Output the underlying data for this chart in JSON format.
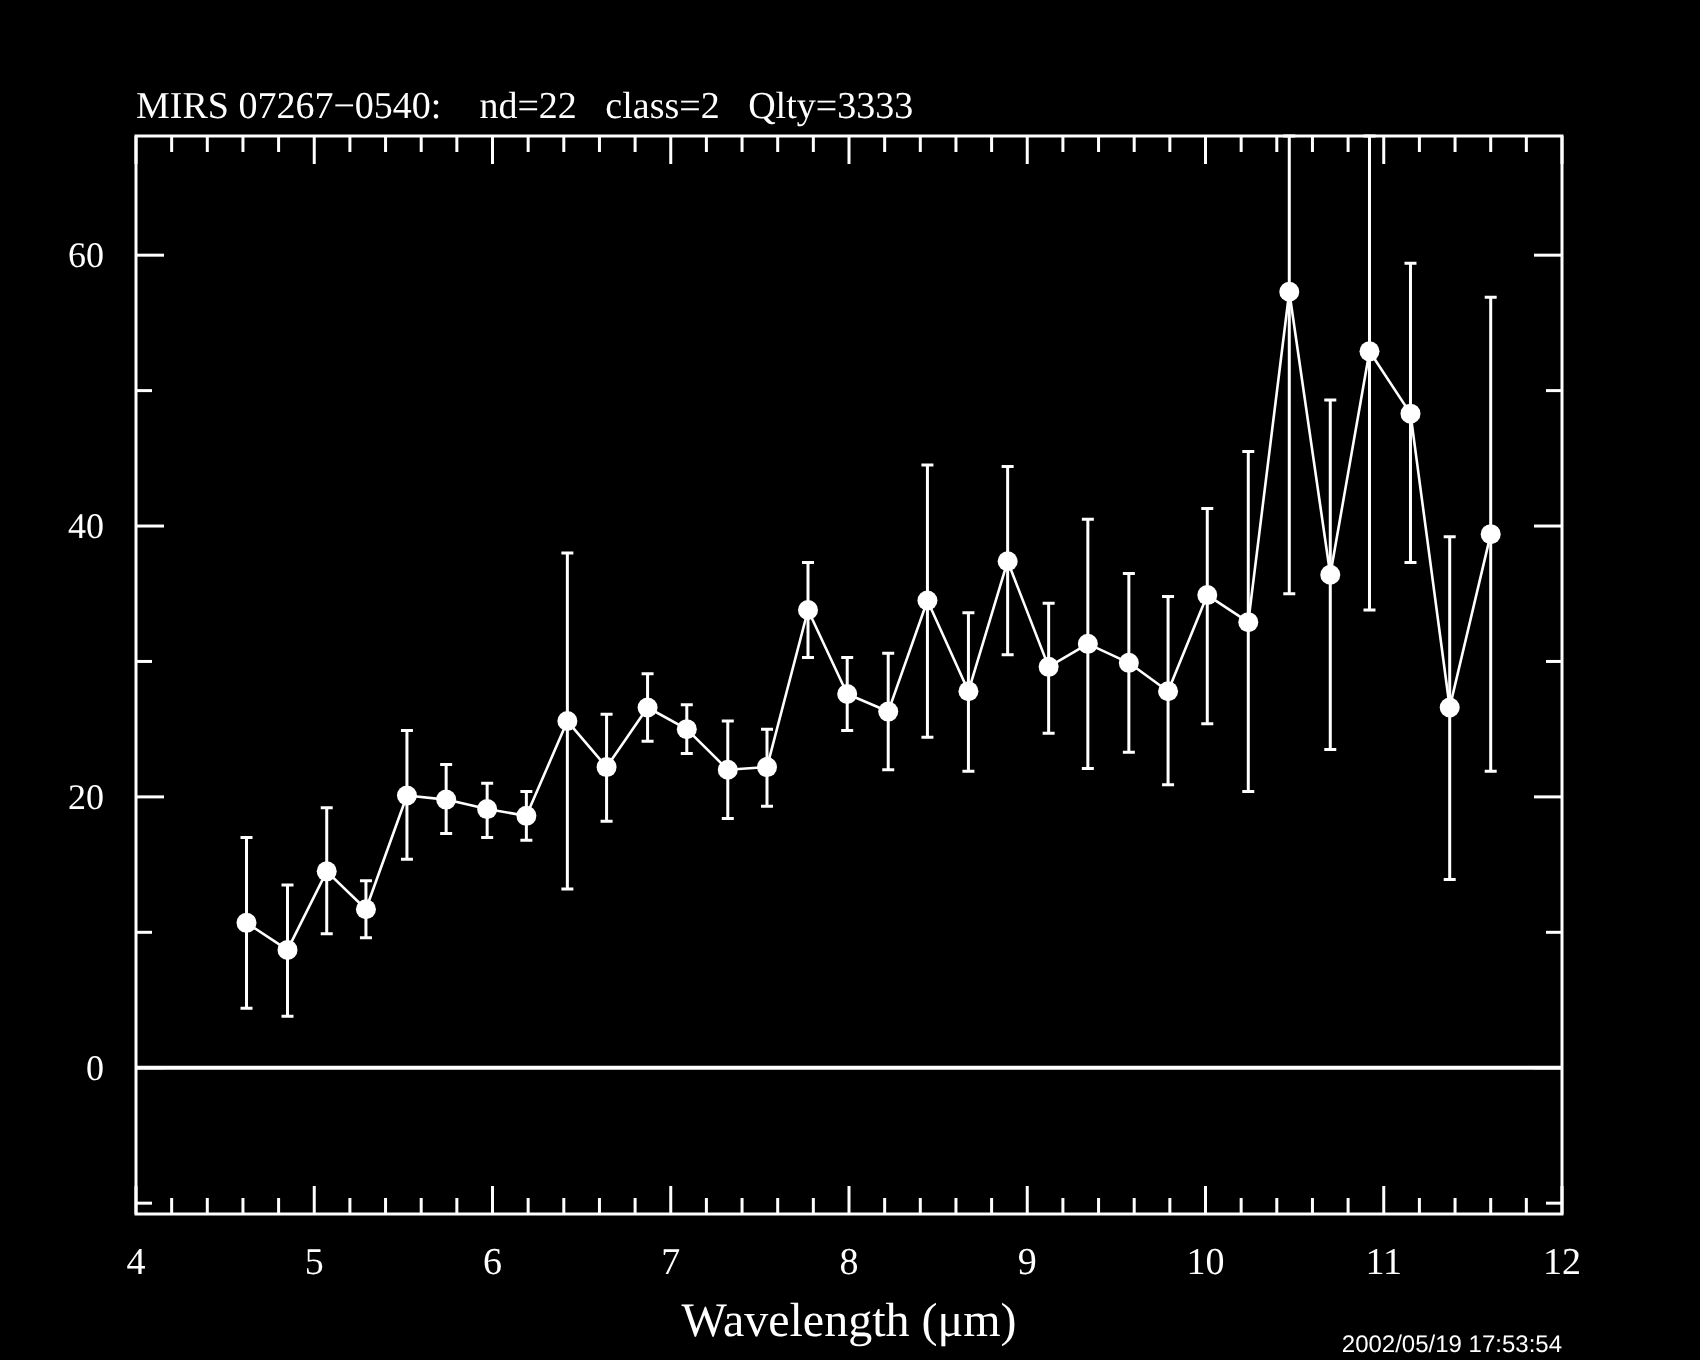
{
  "chart_data": {
    "type": "line",
    "title": "MIRS 07267−0540:    nd=22   class=2   Qlty=3333",
    "xlabel": "Wavelength (μm)",
    "annotations": [
      "2002/05/19 17:53:54"
    ],
    "x": [
      4.62,
      4.85,
      5.07,
      5.29,
      5.52,
      5.74,
      5.97,
      6.19,
      6.42,
      6.64,
      6.87,
      7.09,
      7.32,
      7.54,
      7.77,
      7.99,
      8.22,
      8.44,
      8.67,
      8.89,
      9.12,
      9.34,
      9.57,
      9.79,
      10.01,
      10.24,
      10.47,
      10.7,
      10.92,
      11.15,
      11.37,
      11.6
    ],
    "series": [
      {
        "color": "#ffffff",
        "values": [
          10.7,
          8.7,
          14.5,
          11.7,
          20.1,
          19.8,
          19.1,
          18.6,
          25.6,
          22.2,
          26.6,
          25.0,
          22.0,
          22.2,
          33.8,
          27.6,
          26.3,
          34.5,
          27.8,
          37.4,
          29.6,
          31.3,
          29.9,
          27.8,
          34.9,
          32.9,
          57.3,
          36.4,
          52.9,
          48.3,
          26.6,
          39.4
        ],
        "errors": [
          [
            4.4,
            17.0
          ],
          [
            3.8,
            13.5
          ],
          [
            9.9,
            19.2
          ],
          [
            9.6,
            13.8
          ],
          [
            15.4,
            24.9
          ],
          [
            17.3,
            22.4
          ],
          [
            17.0,
            21.0
          ],
          [
            16.8,
            20.4
          ],
          [
            13.2,
            38.0
          ],
          [
            18.2,
            26.1
          ],
          [
            24.1,
            29.1
          ],
          [
            23.2,
            26.8
          ],
          [
            18.4,
            25.6
          ],
          [
            19.3,
            25.0
          ],
          [
            30.3,
            37.3
          ],
          [
            24.9,
            30.3
          ],
          [
            22.0,
            30.6
          ],
          [
            24.4,
            44.5
          ],
          [
            21.9,
            33.6
          ],
          [
            30.5,
            44.4
          ],
          [
            24.7,
            34.3
          ],
          [
            22.1,
            40.5
          ],
          [
            23.3,
            36.5
          ],
          [
            20.9,
            34.8
          ],
          [
            25.4,
            41.3
          ],
          [
            20.4,
            45.5
          ],
          [
            35.0,
            68.8
          ],
          [
            23.5,
            49.3
          ],
          [
            33.8,
            68.8
          ],
          [
            37.3,
            59.4
          ],
          [
            13.9,
            39.2
          ],
          [
            21.9,
            56.9
          ]
        ]
      }
    ],
    "xlim": [
      4,
      12
    ],
    "xticks": [
      4,
      {
        "value": 4.2,
        "label": null
      },
      {
        "value": 4.4,
        "label": null
      },
      {
        "value": 4.6,
        "label": null
      },
      {
        "value": 4.8,
        "label": null
      },
      5,
      {
        "value": 5.2,
        "label": null
      },
      {
        "value": 5.4,
        "label": null
      },
      {
        "value": 5.6,
        "label": null
      },
      {
        "value": 5.8,
        "label": null
      },
      6,
      {
        "value": 6.2,
        "label": null
      },
      {
        "value": 6.4,
        "label": null
      },
      {
        "value": 6.6,
        "label": null
      },
      {
        "value": 6.8,
        "label": null
      },
      7,
      {
        "value": 7.2,
        "label": null
      },
      {
        "value": 7.4,
        "label": null
      },
      {
        "value": 7.6,
        "label": null
      },
      {
        "value": 7.8,
        "label": null
      },
      8,
      {
        "value": 8.2,
        "label": null
      },
      {
        "value": 8.4,
        "label": null
      },
      {
        "value": 8.6,
        "label": null
      },
      {
        "value": 8.8,
        "label": null
      },
      9,
      {
        "value": 9.2,
        "label": null
      },
      {
        "value": 9.4,
        "label": null
      },
      {
        "value": 9.6,
        "label": null
      },
      {
        "value": 9.8,
        "label": null
      },
      10,
      {
        "value": 10.2,
        "label": null
      },
      {
        "value": 10.4,
        "label": null
      },
      {
        "value": 10.6,
        "label": null
      },
      {
        "value": 10.8,
        "label": null
      },
      11,
      {
        "value": 11.2,
        "label": null
      },
      {
        "value": 11.4,
        "label": null
      },
      {
        "value": 11.6,
        "label": null
      },
      {
        "value": 11.8,
        "label": null
      },
      12
    ],
    "ylim": [
      -10.8,
      68.8
    ],
    "yticks": [
      {
        "value": -10,
        "label": null
      },
      0,
      {
        "value": 10,
        "label": null
      },
      20,
      {
        "value": 30,
        "label": null
      },
      40,
      {
        "value": 50,
        "label": null
      },
      60
    ],
    "ref_lines": [
      {
        "axis": "y",
        "value": 0,
        "color": "#ffffff"
      }
    ],
    "marker": "circle",
    "line_style": "solid"
  }
}
